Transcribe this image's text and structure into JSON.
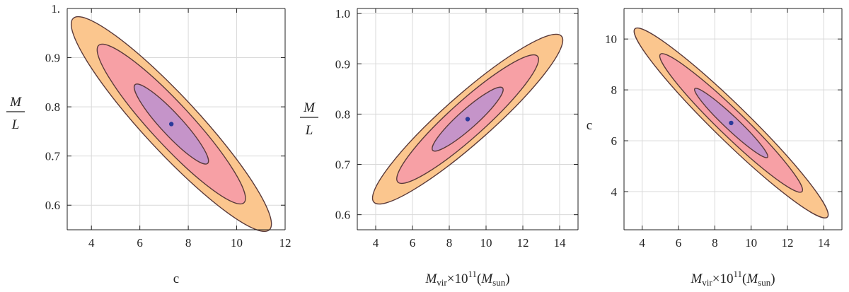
{
  "chart_data": [
    {
      "type": "contour",
      "xlabel": "c",
      "ylabel": {
        "numerator": "M",
        "denominator": "L"
      },
      "xlim": [
        3,
        12
      ],
      "ylim": [
        0.55,
        1.0
      ],
      "x_ticks": [
        4,
        6,
        8,
        10,
        12
      ],
      "x_tick_labels": [
        "4",
        "6",
        "8",
        "10",
        "12"
      ],
      "y_ticks": [
        0.6,
        0.7,
        0.8,
        0.9,
        1.0
      ],
      "y_tick_labels": [
        "0.6",
        "0.7",
        "0.8",
        "0.9",
        "1."
      ],
      "grid": true,
      "best_fit": {
        "x": 7.3,
        "y": 0.765
      },
      "ellipses": [
        {
          "level": "3-sigma",
          "color": "#FBC68E",
          "cx": 7.3,
          "cy": 0.765,
          "halfx": 4.05,
          "halfy": 0.215
        },
        {
          "level": "2-sigma",
          "color": "#F7A0A5",
          "cx": 7.3,
          "cy": 0.765,
          "halfx": 3.0,
          "halfy": 0.16
        },
        {
          "level": "1-sigma",
          "color": "#C594C9",
          "cx": 7.3,
          "cy": 0.765,
          "halfx": 1.5,
          "halfy": 0.08
        }
      ]
    },
    {
      "type": "contour",
      "xlabel": {
        "main": "M",
        "sub": "vir",
        "times": "×10",
        "sup": "11",
        "paren_main": "M",
        "paren_sub": "sun"
      },
      "ylabel": {
        "numerator": "M",
        "denominator": "L"
      },
      "xlim": [
        3,
        15
      ],
      "ylim": [
        0.57,
        1.01
      ],
      "x_ticks": [
        4,
        6,
        8,
        10,
        12,
        14
      ],
      "x_tick_labels": [
        "4",
        "6",
        "8",
        "10",
        "12",
        "14"
      ],
      "y_ticks": [
        0.6,
        0.7,
        0.8,
        0.9,
        1.0
      ],
      "y_tick_labels": [
        "0.6",
        "0.7",
        "0.8",
        "0.9",
        "1.0"
      ],
      "grid": true,
      "best_fit": {
        "x": 9.0,
        "y": 0.79
      },
      "ellipses": [
        {
          "level": "3-sigma",
          "color": "#FBC68E",
          "cx": 9.0,
          "cy": 0.79,
          "halfx": 5.1,
          "halfy": 0.165
        },
        {
          "level": "2-sigma",
          "color": "#F7A0A5",
          "cx": 9.0,
          "cy": 0.79,
          "halfx": 3.8,
          "halfy": 0.125
        },
        {
          "level": "1-sigma",
          "color": "#C594C9",
          "cx": 9.0,
          "cy": 0.79,
          "halfx": 1.9,
          "halfy": 0.062
        }
      ]
    },
    {
      "type": "contour",
      "xlabel": {
        "main": "M",
        "sub": "vir",
        "times": "×10",
        "sup": "11",
        "paren_main": "M",
        "paren_sub": "sun"
      },
      "ylabel": "c",
      "xlim": [
        3,
        15
      ],
      "ylim": [
        2.5,
        11.2
      ],
      "x_ticks": [
        4,
        6,
        8,
        10,
        12,
        14
      ],
      "x_tick_labels": [
        "4",
        "6",
        "8",
        "10",
        "12",
        "14"
      ],
      "y_ticks": [
        4,
        6,
        8,
        10
      ],
      "y_tick_labels": [
        "4",
        "6",
        "8",
        "10"
      ],
      "grid": true,
      "best_fit": {
        "x": 8.9,
        "y": 6.7
      },
      "ellipses": [
        {
          "level": "3-sigma",
          "color": "#FBC68E",
          "cx": 8.9,
          "cy": 6.7,
          "halfx": 5.3,
          "halfy": 3.7
        },
        {
          "level": "2-sigma",
          "color": "#F7A0A5",
          "cx": 8.9,
          "cy": 6.7,
          "halfx": 3.9,
          "halfy": 2.7
        },
        {
          "level": "1-sigma",
          "color": "#C594C9",
          "cx": 8.9,
          "cy": 6.7,
          "halfx": 2.0,
          "halfy": 1.35
        }
      ]
    }
  ]
}
